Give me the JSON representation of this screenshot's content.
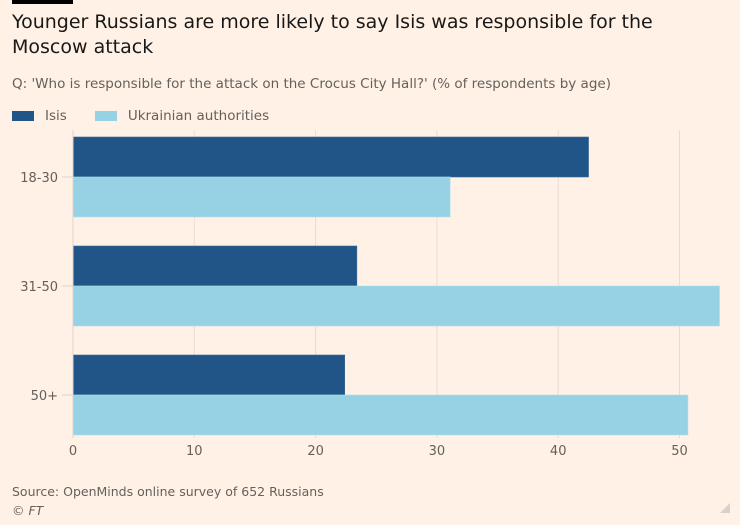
{
  "header": {
    "title": "Younger Russians are more likely to say Isis was responsible for the Moscow attack",
    "subtitle": "Q: 'Who is responsible for the attack on the Crocus City Hall?' (% of respondents by age)"
  },
  "legend": [
    {
      "label": "Isis",
      "color": "#225587"
    },
    {
      "label": "Ukrainian authorities",
      "color": "#96d1e4"
    }
  ],
  "footer": {
    "source": "Source: OpenMinds online survey of 652 Russians",
    "copyright": "© FT"
  },
  "chart_data": {
    "type": "bar",
    "orientation": "horizontal",
    "title": "Younger Russians are more likely to say Isis was responsible for the Moscow attack",
    "subtitle": "Q: 'Who is responsible for the attack on the Crocus City Hall?' (% of respondents by age)",
    "categories": [
      "18-30",
      "31-50",
      "50+"
    ],
    "series": [
      {
        "name": "Isis",
        "color": "#225587",
        "values": [
          42.5,
          23.4,
          22.4
        ]
      },
      {
        "name": "Ukrainian authorities",
        "color": "#96d1e4",
        "values": [
          31.1,
          53.3,
          50.7
        ]
      }
    ],
    "xlabel": "",
    "ylabel": "",
    "xlim": [
      0,
      53.5
    ],
    "xticks": [
      0,
      10,
      20,
      30,
      40,
      50
    ],
    "xtick_labels": [
      "0",
      "10",
      "20",
      "30",
      "40",
      "50"
    ],
    "grid": true,
    "legend_position": "top-left"
  }
}
